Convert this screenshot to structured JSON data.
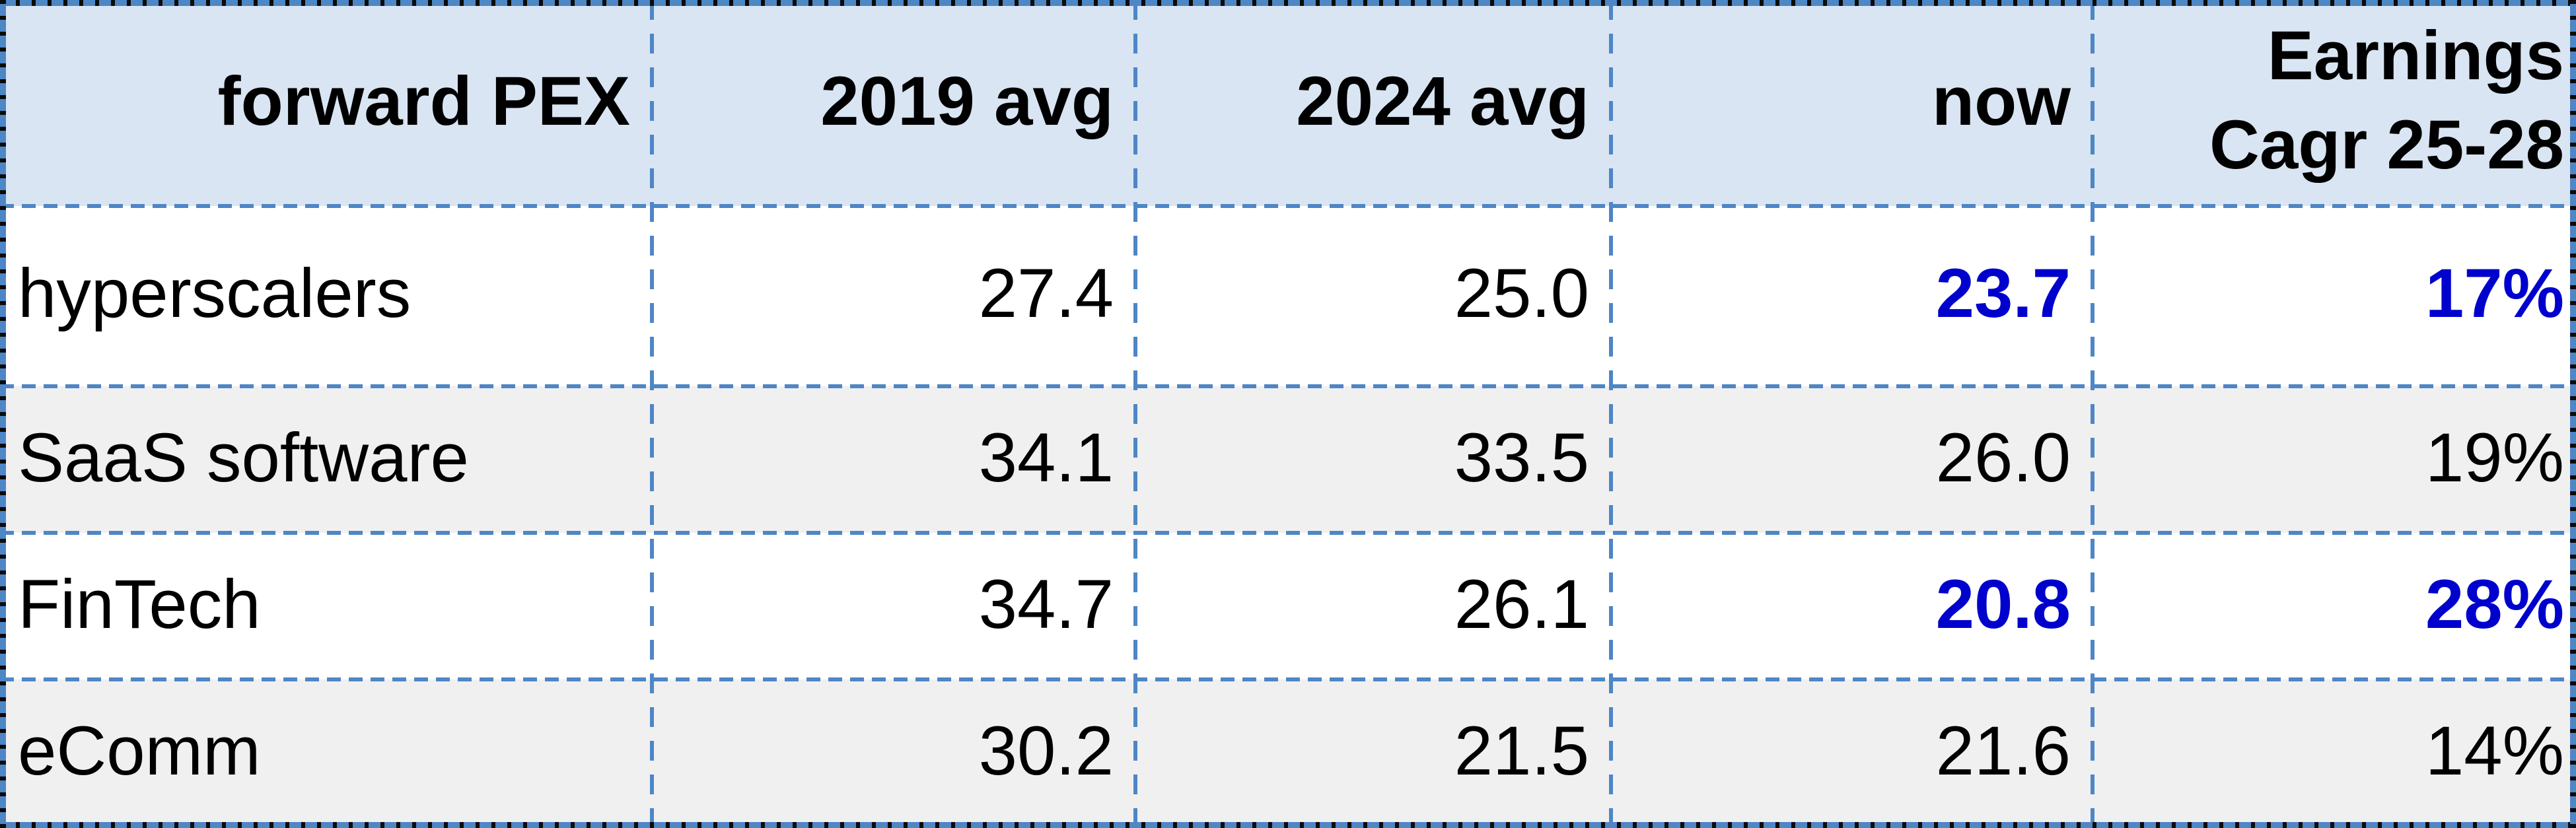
{
  "table": {
    "header": {
      "col1": "forward PEX",
      "col2": "2019 avg",
      "col3": "2024 avg",
      "col4": "now",
      "col5": "Earnings\nCagr 25-28"
    },
    "rows": [
      {
        "label": "hyperscalers",
        "avg_2019": "27.4",
        "avg_2024": "25.0",
        "now": "23.7",
        "earnings_cagr_25_28": "17%"
      },
      {
        "label": "SaaS software",
        "avg_2019": "34.1",
        "avg_2024": "33.5",
        "now": "26.0",
        "earnings_cagr_25_28": "19%"
      },
      {
        "label": "FinTech",
        "avg_2019": "34.7",
        "avg_2024": "26.1",
        "now": "20.8",
        "earnings_cagr_25_28": "28%"
      },
      {
        "label": "eComm",
        "avg_2019": "30.2",
        "avg_2024": "21.5",
        "now": "21.6",
        "earnings_cagr_25_28": "14%"
      }
    ],
    "emphasized_cells": [
      {
        "row": "hyperscalers",
        "columns": [
          "now",
          "earnings_cagr_25_28"
        ]
      },
      {
        "row": "FinTech",
        "columns": [
          "now",
          "earnings_cagr_25_28"
        ]
      }
    ]
  },
  "colors": {
    "header_background": "#d9e5f2",
    "alt_row_background": "#f0f0f0",
    "emphasis_text": "#0101cd",
    "grid_line_blue": "#4e86c6",
    "marquee_dark": "#0b0b0b"
  }
}
